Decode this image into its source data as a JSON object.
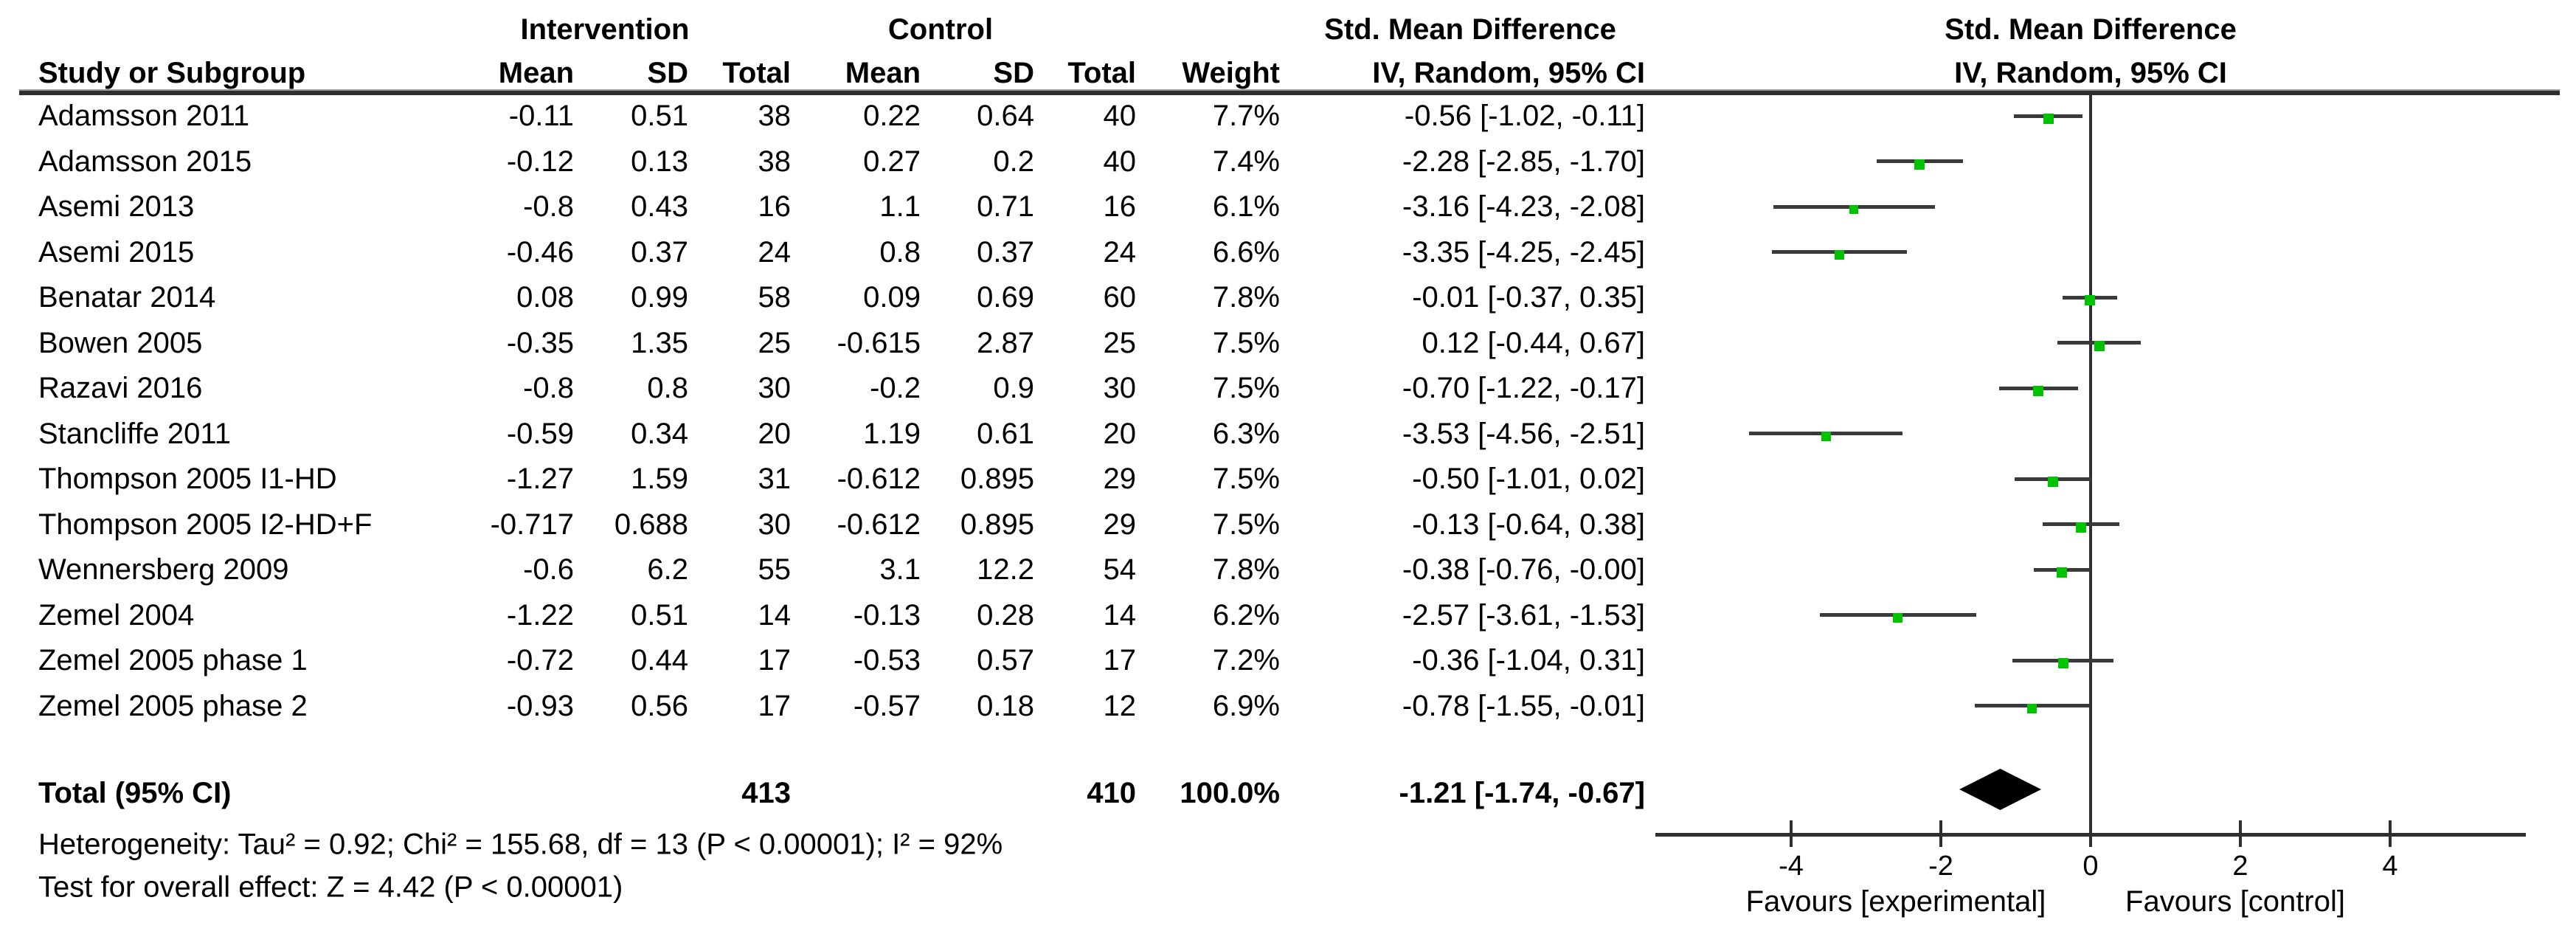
{
  "group_headers": {
    "intervention": "Intervention",
    "control": "Control",
    "smd_table": "Std. Mean Difference",
    "smd_plot": "Std. Mean Difference"
  },
  "column_headers": {
    "study": "Study or Subgroup",
    "i_mean": "Mean",
    "i_sd": "SD",
    "i_total": "Total",
    "c_mean": "Mean",
    "c_sd": "SD",
    "c_total": "Total",
    "weight": "Weight",
    "iv_table": "IV, Random, 95% CI",
    "iv_plot": "IV, Random, 95% CI"
  },
  "chart_data": {
    "type": "forest",
    "title": "Std. Mean Difference",
    "effect_model": "IV, Random, 95% CI",
    "xlim": [
      -5.8,
      5.8
    ],
    "grid": false,
    "axis": {
      "ticks": [
        -4,
        -2,
        0,
        2,
        4
      ],
      "tick_labels": [
        "-4",
        "-2",
        "0",
        "2",
        "4"
      ],
      "favours_left": "Favours [experimental]",
      "favours_right": "Favours [control]"
    },
    "studies": [
      {
        "name": "Adamsson 2011",
        "i_mean": "-0.11",
        "i_sd": "0.51",
        "i_total": "38",
        "c_mean": "0.22",
        "c_sd": "0.64",
        "c_total": "40",
        "weight": "7.7%",
        "ci_text": "-0.56 [-1.02, -0.11]",
        "smd": -0.56,
        "lo": -1.02,
        "hi": -0.11,
        "w": 7.7
      },
      {
        "name": "Adamsson 2015",
        "i_mean": "-0.12",
        "i_sd": "0.13",
        "i_total": "38",
        "c_mean": "0.27",
        "c_sd": "0.2",
        "c_total": "40",
        "weight": "7.4%",
        "ci_text": "-2.28 [-2.85, -1.70]",
        "smd": -2.28,
        "lo": -2.85,
        "hi": -1.7,
        "w": 7.4
      },
      {
        "name": "Asemi 2013",
        "i_mean": "-0.8",
        "i_sd": "0.43",
        "i_total": "16",
        "c_mean": "1.1",
        "c_sd": "0.71",
        "c_total": "16",
        "weight": "6.1%",
        "ci_text": "-3.16 [-4.23, -2.08]",
        "smd": -3.16,
        "lo": -4.23,
        "hi": -2.08,
        "w": 6.1
      },
      {
        "name": "Asemi 2015",
        "i_mean": "-0.46",
        "i_sd": "0.37",
        "i_total": "24",
        "c_mean": "0.8",
        "c_sd": "0.37",
        "c_total": "24",
        "weight": "6.6%",
        "ci_text": "-3.35 [-4.25, -2.45]",
        "smd": -3.35,
        "lo": -4.25,
        "hi": -2.45,
        "w": 6.6
      },
      {
        "name": "Benatar 2014",
        "i_mean": "0.08",
        "i_sd": "0.99",
        "i_total": "58",
        "c_mean": "0.09",
        "c_sd": "0.69",
        "c_total": "60",
        "weight": "7.8%",
        "ci_text": "-0.01 [-0.37, 0.35]",
        "smd": -0.01,
        "lo": -0.37,
        "hi": 0.35,
        "w": 7.8
      },
      {
        "name": "Bowen 2005",
        "i_mean": "-0.35",
        "i_sd": "1.35",
        "i_total": "25",
        "c_mean": "-0.615",
        "c_sd": "2.87",
        "c_total": "25",
        "weight": "7.5%",
        "ci_text": "0.12 [-0.44, 0.67]",
        "smd": 0.12,
        "lo": -0.44,
        "hi": 0.67,
        "w": 7.5
      },
      {
        "name": "Razavi 2016",
        "i_mean": "-0.8",
        "i_sd": "0.8",
        "i_total": "30",
        "c_mean": "-0.2",
        "c_sd": "0.9",
        "c_total": "30",
        "weight": "7.5%",
        "ci_text": "-0.70 [-1.22, -0.17]",
        "smd": -0.7,
        "lo": -1.22,
        "hi": -0.17,
        "w": 7.5
      },
      {
        "name": "Stancliffe 2011",
        "i_mean": "-0.59",
        "i_sd": "0.34",
        "i_total": "20",
        "c_mean": "1.19",
        "c_sd": "0.61",
        "c_total": "20",
        "weight": "6.3%",
        "ci_text": "-3.53 [-4.56, -2.51]",
        "smd": -3.53,
        "lo": -4.56,
        "hi": -2.51,
        "w": 6.3
      },
      {
        "name": "Thompson 2005 I1-HD",
        "i_mean": "-1.27",
        "i_sd": "1.59",
        "i_total": "31",
        "c_mean": "-0.612",
        "c_sd": "0.895",
        "c_total": "29",
        "weight": "7.5%",
        "ci_text": "-0.50 [-1.01, 0.02]",
        "smd": -0.5,
        "lo": -1.01,
        "hi": 0.02,
        "w": 7.5
      },
      {
        "name": "Thompson 2005 I2-HD+F",
        "i_mean": "-0.717",
        "i_sd": "0.688",
        "i_total": "30",
        "c_mean": "-0.612",
        "c_sd": "0.895",
        "c_total": "29",
        "weight": "7.5%",
        "ci_text": "-0.13 [-0.64, 0.38]",
        "smd": -0.13,
        "lo": -0.64,
        "hi": 0.38,
        "w": 7.5
      },
      {
        "name": "Wennersberg 2009",
        "i_mean": "-0.6",
        "i_sd": "6.2",
        "i_total": "55",
        "c_mean": "3.1",
        "c_sd": "12.2",
        "c_total": "54",
        "weight": "7.8%",
        "ci_text": "-0.38 [-0.76, -0.00]",
        "smd": -0.38,
        "lo": -0.76,
        "hi": -0.004,
        "w": 7.8
      },
      {
        "name": "Zemel 2004",
        "i_mean": "-1.22",
        "i_sd": "0.51",
        "i_total": "14",
        "c_mean": "-0.13",
        "c_sd": "0.28",
        "c_total": "14",
        "weight": "6.2%",
        "ci_text": "-2.57 [-3.61, -1.53]",
        "smd": -2.57,
        "lo": -3.61,
        "hi": -1.53,
        "w": 6.2
      },
      {
        "name": "Zemel 2005 phase 1",
        "i_mean": "-0.72",
        "i_sd": "0.44",
        "i_total": "17",
        "c_mean": "-0.53",
        "c_sd": "0.57",
        "c_total": "17",
        "weight": "7.2%",
        "ci_text": "-0.36 [-1.04, 0.31]",
        "smd": -0.36,
        "lo": -1.04,
        "hi": 0.31,
        "w": 7.2
      },
      {
        "name": "Zemel 2005 phase 2",
        "i_mean": "-0.93",
        "i_sd": "0.56",
        "i_total": "17",
        "c_mean": "-0.57",
        "c_sd": "0.18",
        "c_total": "12",
        "weight": "6.9%",
        "ci_text": "-0.78 [-1.55, -0.01]",
        "smd": -0.78,
        "lo": -1.55,
        "hi": -0.01,
        "w": 6.9
      }
    ],
    "total": {
      "label": "Total (95% CI)",
      "i_total": "413",
      "c_total": "410",
      "weight": "100.0%",
      "ci_text": "-1.21 [-1.74, -0.67]",
      "smd": -1.21,
      "lo": -1.74,
      "hi": -0.67
    },
    "footer": {
      "heterogeneity": "Heterogeneity: Tau² = 0.92; Chi² = 155.68, df = 13 (P < 0.00001); I² = 92%",
      "overall_effect": "Test for overall effect: Z = 4.42 (P < 0.00001)"
    }
  },
  "colors": {
    "square": "#00c300",
    "ci_line": "#3a3a3a",
    "axis": "#2f2f2f",
    "diamond": "#000000",
    "text": "#000000"
  }
}
